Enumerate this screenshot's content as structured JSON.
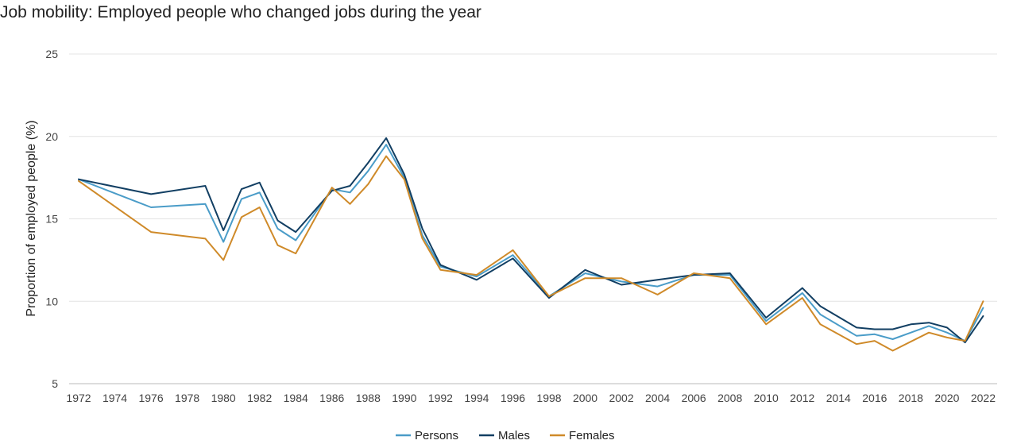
{
  "chart_data": {
    "type": "line",
    "title": "Job mobility: Employed people who changed jobs during the year",
    "xlabel": "",
    "ylabel": "Proportion of employed people (%)",
    "ylim": [
      5,
      25
    ],
    "yticks": [
      5,
      10,
      15,
      20,
      25
    ],
    "xticks": [
      1972,
      1974,
      1976,
      1978,
      1980,
      1982,
      1984,
      1986,
      1988,
      1990,
      1992,
      1994,
      1996,
      1998,
      2000,
      2002,
      2004,
      2006,
      2008,
      2010,
      2012,
      2014,
      2016,
      2018,
      2020,
      2022
    ],
    "xlim": [
      1972,
      2022.2
    ],
    "grid": true,
    "legend_position": "bottom-center",
    "series": [
      {
        "name": "Persons",
        "color": "#4a9cc8",
        "x": [
          1972,
          1976,
          1979,
          1980,
          1981,
          1982,
          1983,
          1984,
          1986,
          1987,
          1988,
          1989,
          1990,
          1991,
          1992,
          1994,
          1996,
          1998,
          2000,
          2002,
          2004,
          2006,
          2008,
          2010,
          2012,
          2013,
          2015,
          2016,
          2017,
          2019,
          2020,
          2021,
          2022
        ],
        "values": [
          17.4,
          15.7,
          15.9,
          13.6,
          16.2,
          16.6,
          14.4,
          13.7,
          16.8,
          16.6,
          17.9,
          19.5,
          17.5,
          14.0,
          12.1,
          11.5,
          12.8,
          10.3,
          11.7,
          11.2,
          10.9,
          11.6,
          11.6,
          8.8,
          10.5,
          9.2,
          7.9,
          8.0,
          7.7,
          8.5,
          8.1,
          7.6,
          9.6
        ]
      },
      {
        "name": "Males",
        "color": "#123f63",
        "x": [
          1972,
          1976,
          1979,
          1980,
          1981,
          1982,
          1983,
          1984,
          1986,
          1987,
          1988,
          1989,
          1990,
          1991,
          1992,
          1994,
          1996,
          1998,
          2000,
          2002,
          2004,
          2006,
          2008,
          2010,
          2012,
          2013,
          2015,
          2016,
          2017,
          2018,
          2019,
          2020,
          2021,
          2022
        ],
        "values": [
          17.4,
          16.5,
          17.0,
          14.3,
          16.8,
          17.2,
          14.9,
          14.2,
          16.7,
          17.0,
          18.4,
          19.9,
          17.7,
          14.4,
          12.2,
          11.3,
          12.6,
          10.2,
          11.9,
          11.0,
          11.3,
          11.6,
          11.7,
          9.0,
          10.8,
          9.7,
          8.4,
          8.3,
          8.3,
          8.6,
          8.7,
          8.4,
          7.5,
          9.1
        ]
      },
      {
        "name": "Females",
        "color": "#cf8a29",
        "x": [
          1972,
          1976,
          1979,
          1980,
          1981,
          1982,
          1983,
          1984,
          1986,
          1987,
          1988,
          1989,
          1990,
          1991,
          1992,
          1994,
          1996,
          1998,
          2000,
          2002,
          2004,
          2006,
          2008,
          2010,
          2012,
          2013,
          2015,
          2016,
          2017,
          2019,
          2020,
          2021,
          2022
        ],
        "values": [
          17.3,
          14.2,
          13.8,
          12.5,
          15.1,
          15.7,
          13.4,
          12.9,
          16.9,
          15.9,
          17.1,
          18.8,
          17.4,
          13.8,
          11.9,
          11.6,
          13.1,
          10.3,
          11.4,
          11.4,
          10.4,
          11.7,
          11.4,
          8.6,
          10.2,
          8.6,
          7.4,
          7.6,
          7.0,
          8.1,
          7.8,
          7.6,
          10.0
        ]
      }
    ]
  }
}
